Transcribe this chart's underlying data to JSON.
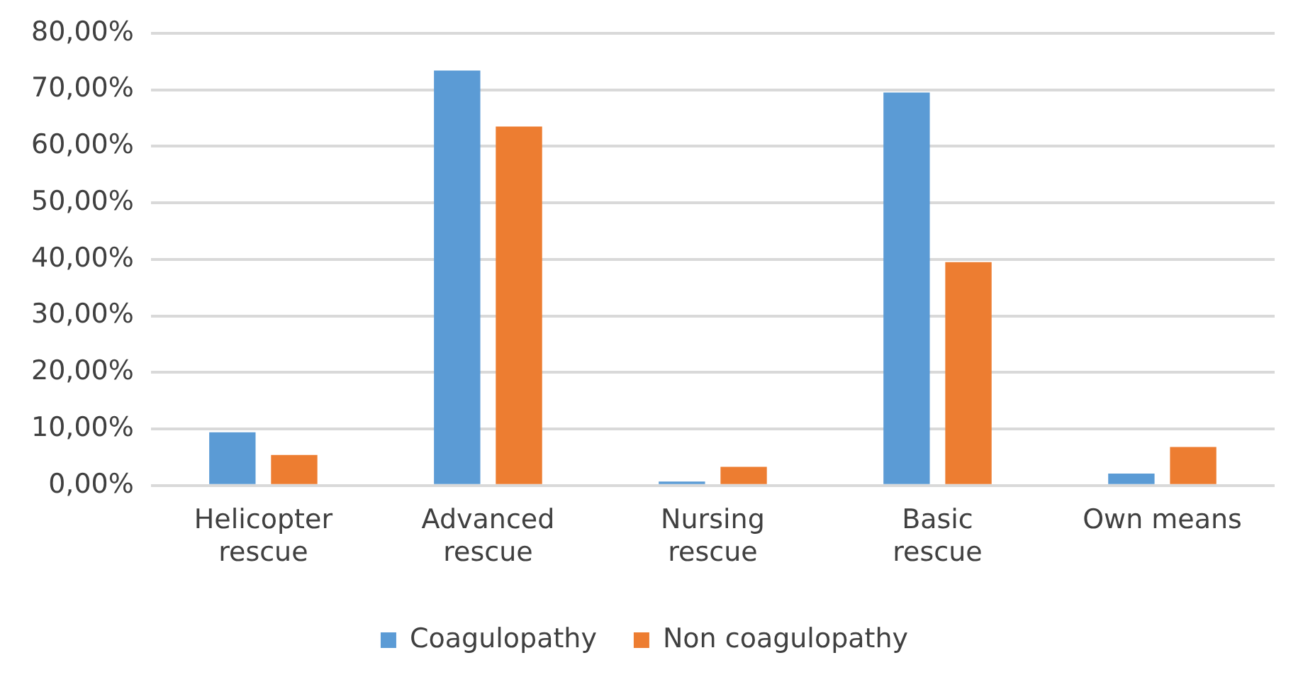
{
  "chart_data": {
    "type": "bar",
    "categories": [
      "Helicopter rescue",
      "Advanced rescue",
      "Nursing rescue",
      "Basic rescue",
      "Own means"
    ],
    "series": [
      {
        "name": "Coagulopathy",
        "color": "#5b9bd5",
        "values": [
          9.4,
          73.4,
          0.7,
          69.5,
          2.1
        ]
      },
      {
        "name": "Non coagulopathy",
        "color": "#ed7d31",
        "values": [
          5.4,
          63.5,
          3.3,
          39.5,
          6.8
        ]
      }
    ],
    "ylim": [
      0,
      80
    ],
    "yticks": [
      {
        "value": 0,
        "label": "0,00%"
      },
      {
        "value": 10,
        "label": "10,00%"
      },
      {
        "value": 20,
        "label": "20,00%"
      },
      {
        "value": 30,
        "label": "30,00%"
      },
      {
        "value": 40,
        "label": "40,00%"
      },
      {
        "value": 50,
        "label": "50,00%"
      },
      {
        "value": 60,
        "label": "60,00%"
      },
      {
        "value": 70,
        "label": "70,00%"
      },
      {
        "value": 80,
        "label": "80,00%"
      }
    ],
    "grid": "y",
    "legend": "bottom"
  }
}
